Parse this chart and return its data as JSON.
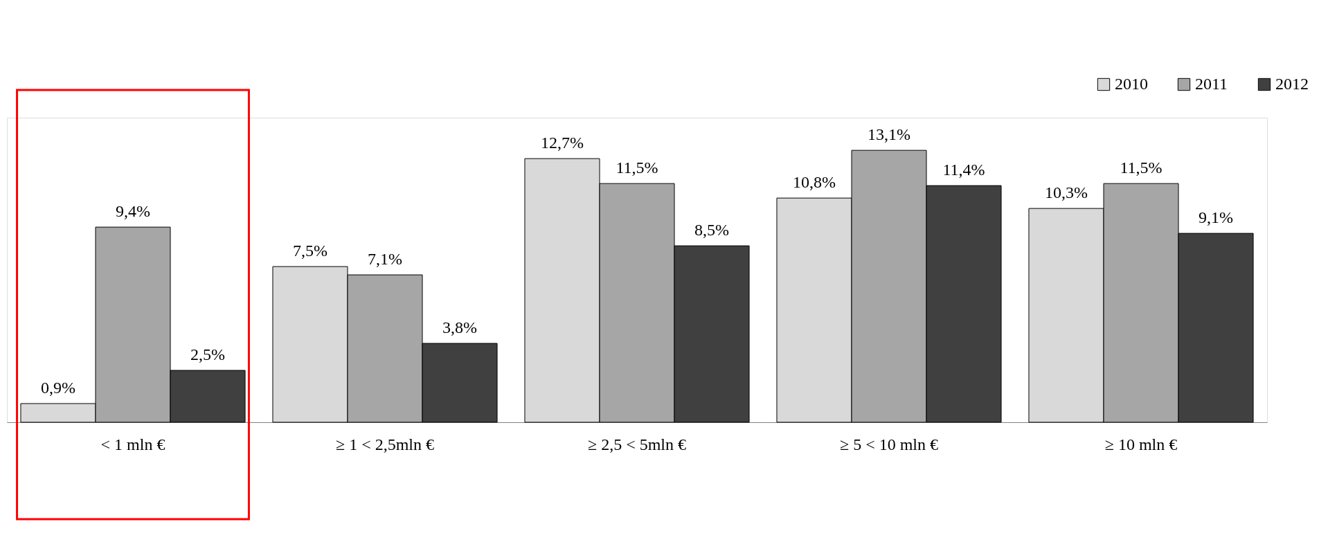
{
  "chart_data": {
    "type": "bar",
    "categories": [
      "< 1 mln €",
      "≥ 1 < 2,5mln €",
      "≥ 2,5 < 5mln €",
      "≥ 5 < 10 mln €",
      "≥ 10 mln €"
    ],
    "series": [
      {
        "name": "2010",
        "color": "#d9d9d9",
        "values": [
          0.9,
          7.5,
          12.7,
          10.8,
          10.3
        ],
        "value_labels": [
          "0,9%",
          "7,5%",
          "12,7%",
          "10,8%",
          "10,3%"
        ]
      },
      {
        "name": "2011",
        "color": "#a6a6a6",
        "values": [
          9.4,
          7.1,
          11.5,
          13.1,
          11.5
        ],
        "value_labels": [
          "9,4%",
          "7,1%",
          "11,5%",
          "13,1%",
          "11,5%"
        ]
      },
      {
        "name": "2012",
        "color": "#404040",
        "values": [
          2.5,
          3.8,
          8.5,
          11.4,
          9.1
        ],
        "value_labels": [
          "2,5%",
          "3,8%",
          "8,5%",
          "11,4%",
          "9,1%"
        ]
      }
    ],
    "legend": "top right",
    "grid": false
  }
}
